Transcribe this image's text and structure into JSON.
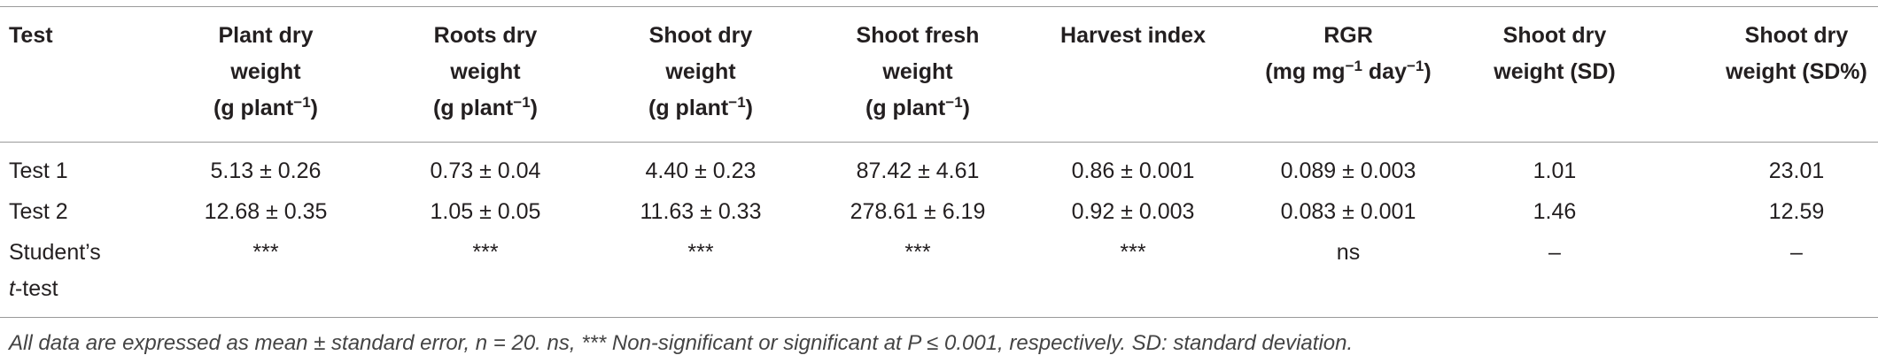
{
  "table": {
    "header": [
      [
        [
          "Test"
        ]
      ],
      [
        [
          "Plant dry"
        ],
        [
          "weight"
        ],
        [
          "(g plant",
          {
            "sup": "−1"
          },
          ")"
        ]
      ],
      [
        [
          "Roots dry"
        ],
        [
          "weight"
        ],
        [
          "(g plant",
          {
            "sup": "−1"
          },
          ")"
        ]
      ],
      [
        [
          "Shoot dry"
        ],
        [
          "weight"
        ],
        [
          "(g plant",
          {
            "sup": "−1"
          },
          ")"
        ]
      ],
      [
        [
          "Shoot fresh"
        ],
        [
          "weight"
        ],
        [
          "(g plant",
          {
            "sup": "−1"
          },
          ")"
        ]
      ],
      [
        [
          "Harvest index"
        ]
      ],
      [
        [
          "RGR"
        ],
        [
          "(mg mg",
          {
            "sup": "−1"
          },
          " day",
          {
            "sup": "−1"
          },
          ")"
        ]
      ],
      [
        [
          "Shoot dry"
        ],
        [
          "weight (SD)"
        ]
      ],
      [
        [
          "Shoot dry"
        ],
        [
          "weight (SD%)"
        ]
      ]
    ],
    "rows": [
      [
        [
          [
            "Test 1"
          ]
        ],
        [
          [
            "5.13 ± 0.26"
          ]
        ],
        [
          [
            "0.73 ± 0.04"
          ]
        ],
        [
          [
            "4.40 ± 0.23"
          ]
        ],
        [
          [
            "87.42 ± 4.61"
          ]
        ],
        [
          [
            "0.86 ± 0.001"
          ]
        ],
        [
          [
            "0.089 ± 0.003"
          ]
        ],
        [
          [
            "1.01"
          ]
        ],
        [
          [
            "23.01"
          ]
        ]
      ],
      [
        [
          [
            "Test 2"
          ]
        ],
        [
          [
            "12.68 ± 0.35"
          ]
        ],
        [
          [
            "1.05 ± 0.05"
          ]
        ],
        [
          [
            "11.63 ± 0.33"
          ]
        ],
        [
          [
            "278.61 ± 6.19"
          ]
        ],
        [
          [
            "0.92 ± 0.003"
          ]
        ],
        [
          [
            "0.083 ± 0.001"
          ]
        ],
        [
          [
            "1.46"
          ]
        ],
        [
          [
            "12.59"
          ]
        ]
      ],
      [
        [
          [
            "Student’s"
          ],
          [
            {
              "i": "t"
            },
            "-test"
          ]
        ],
        [
          [
            "***"
          ]
        ],
        [
          [
            "***"
          ]
        ],
        [
          [
            "***"
          ]
        ],
        [
          [
            "***"
          ]
        ],
        [
          [
            "***"
          ]
        ],
        [
          [
            "ns"
          ]
        ],
        [
          [
            "–"
          ]
        ],
        [
          [
            "–"
          ]
        ]
      ]
    ],
    "footnote": "All data are expressed as mean ± standard error, n = 20. ns, *** Non-significant or significant at P ≤ 0.001, respectively. SD: standard deviation."
  }
}
